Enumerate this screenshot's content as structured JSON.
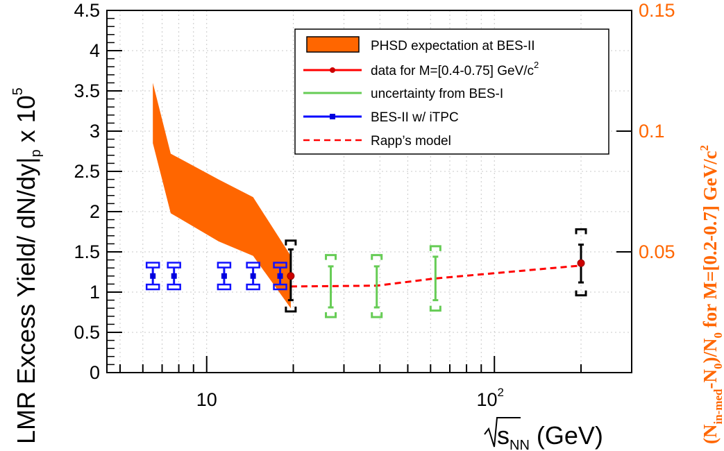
{
  "chart_data": {
    "type": "scatter",
    "xlabel_main": "s",
    "xlabel_sub": "NN",
    "xlabel_unit": " (GeV)",
    "x_scale": "log",
    "xlim": [
      4.5,
      300
    ],
    "ylim": [
      0,
      4.5
    ],
    "ylabel_main": "LMR Excess Yield/ dN/dy|",
    "ylabel_sub": "p",
    "ylabel_times": " x 10",
    "ylabel_exp": "5",
    "y_ticks": [
      "0",
      "0.5",
      "1",
      "1.5",
      "2",
      "2.5",
      "3",
      "3.5",
      "4",
      "4.5"
    ],
    "x_tick_10": "10",
    "x_tick_100_base": "10",
    "x_tick_100_exp": "2",
    "right_axis": {
      "ylim": [
        0.0,
        0.15
      ],
      "ticks": [
        "0.05",
        "0.1",
        "0.15"
      ],
      "title_parts": [
        "(N",
        "in-med",
        "-N",
        "0",
        ")/N",
        "0",
        " for M=[0.2-0.7] GeV/c",
        "2"
      ],
      "color": "#ff6600"
    },
    "grid": true,
    "legend_position": "top-right",
    "legend": {
      "phsd": "PHSD expectation at BES-II",
      "data": "data for M=[0.4-0.75] GeV/c",
      "data_sup": "2",
      "bes1": "uncertainty from BES-I",
      "bes2": "BES-II w/ iTPC",
      "rapp": "Rapp’s model"
    },
    "series": [
      {
        "name": "PHSD expectation at BES-II",
        "kind": "band",
        "color": "#ff6600",
        "x": [
          6.5,
          7.5,
          11,
          14.5,
          19.6
        ],
        "y_upper": [
          3.6,
          2.72,
          2.4,
          2.18,
          1.45
        ],
        "y_lower": [
          2.85,
          1.98,
          1.63,
          1.45,
          0.8
        ]
      },
      {
        "name": "data for M=[0.4-0.75] GeV/c2",
        "kind": "points",
        "color": "#000000",
        "points": [
          {
            "x": 19.6,
            "y": 1.2,
            "stat": [
              0.9,
              1.53
            ],
            "sys": [
              0.76,
              1.64
            ]
          },
          {
            "x": 200,
            "y": 1.36,
            "stat": [
              1.12,
              1.59
            ],
            "sys": [
              0.96,
              1.78
            ]
          }
        ]
      },
      {
        "name": "uncertainty from BES-I",
        "kind": "bars",
        "color": "#66cc55",
        "points": [
          {
            "x": 27,
            "y": 1.08,
            "stat": [
              0.81,
              1.32
            ],
            "sys": [
              0.69,
              1.46
            ]
          },
          {
            "x": 39,
            "y": 1.08,
            "stat": [
              0.81,
              1.32
            ],
            "sys": [
              0.69,
              1.46
            ]
          },
          {
            "x": 62.4,
            "y": 1.17,
            "stat": [
              0.9,
              1.44
            ],
            "sys": [
              0.77,
              1.57
            ]
          }
        ]
      },
      {
        "name": "BES-II w/ iTPC",
        "kind": "points",
        "color": "#0000dd",
        "points": [
          {
            "x": 6.5,
            "y": 1.2,
            "stat": [
              1.1,
              1.3
            ],
            "sys": [
              1.06,
              1.34
            ]
          },
          {
            "x": 7.7,
            "y": 1.2,
            "stat": [
              1.1,
              1.3
            ],
            "sys": [
              1.06,
              1.34
            ]
          },
          {
            "x": 11.5,
            "y": 1.2,
            "stat": [
              1.1,
              1.3
            ],
            "sys": [
              1.06,
              1.34
            ]
          },
          {
            "x": 14.5,
            "y": 1.2,
            "stat": [
              1.1,
              1.3
            ],
            "sys": [
              1.06,
              1.34
            ]
          },
          {
            "x": 18,
            "y": 1.2,
            "stat": [
              1.1,
              1.3
            ],
            "sys": [
              1.06,
              1.34
            ]
          }
        ]
      },
      {
        "name": "Rapp’s model",
        "kind": "dashed-line",
        "color": "#ff0000",
        "x": [
          19.6,
          39,
          62.4,
          200
        ],
        "y": [
          1.07,
          1.08,
          1.17,
          1.33
        ]
      }
    ]
  }
}
